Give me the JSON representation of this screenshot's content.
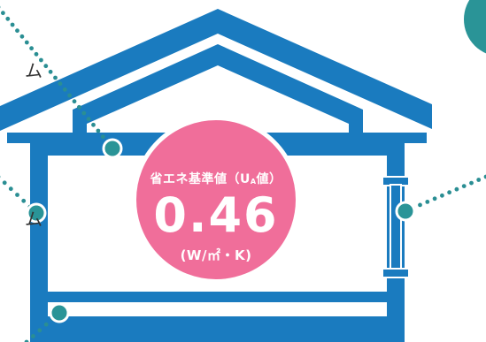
{
  "badge": {
    "label_prefix": "省エネ基準値（U",
    "label_sub": "A",
    "label_suffix": "値）",
    "value": "0.46",
    "unit": "(W/㎡・K)"
  },
  "left_labels": [
    "ム",
    "ム"
  ],
  "colors": {
    "house": "#1a7bbf",
    "badge": "#f06e9a",
    "marker": "#2a9497",
    "dots": "#2a8e93",
    "text": "#333333"
  }
}
